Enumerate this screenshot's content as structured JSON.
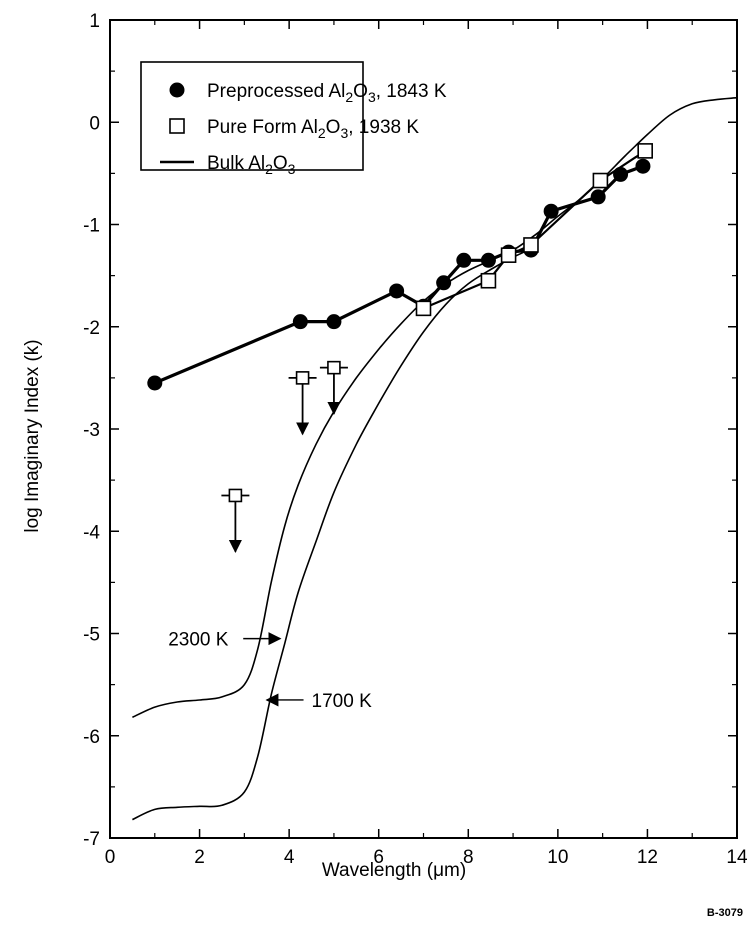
{
  "chart_data": {
    "type": "line",
    "title": "",
    "xlabel": "Wavelength (μm)",
    "ylabel": "log Imaginary Index (k)",
    "xlim": [
      0,
      14
    ],
    "ylim": [
      -7,
      1
    ],
    "xticks": [
      "0",
      "2",
      "4",
      "6",
      "8",
      "10",
      "12",
      "14"
    ],
    "yticks": [
      "1",
      "0",
      "-1",
      "-2",
      "-3",
      "-4",
      "-5",
      "-6",
      "-7"
    ],
    "grid": false,
    "legend_position": "top-left",
    "legend": [
      {
        "label_pre": "Preprocessed Al",
        "sub1": "2",
        "mid": "O",
        "sub2": "3",
        "post": ", 1843 K",
        "marker": "filled-circle"
      },
      {
        "label_pre": "Pure Form Al",
        "sub1": "2",
        "mid": "O",
        "sub2": "3",
        "post": ", 1938 K",
        "marker": "open-square"
      },
      {
        "label_pre": "Bulk Al",
        "sub1": "2",
        "mid": "O",
        "sub2": "3",
        "post": "",
        "marker": "line"
      }
    ],
    "series": [
      {
        "name": "Preprocessed Al2O3, 1843 K",
        "marker": "filled-circle",
        "connected": true,
        "x": [
          1.0,
          4.25,
          5.0,
          6.4,
          7.0,
          7.45,
          7.9,
          8.45,
          8.9,
          9.4,
          9.85,
          10.9,
          11.4,
          11.9
        ],
        "y": [
          -2.55,
          -1.95,
          -1.95,
          -1.65,
          -1.8,
          -1.57,
          -1.35,
          -1.35,
          -1.27,
          -1.25,
          -0.87,
          -0.73,
          -0.51,
          -0.43
        ]
      },
      {
        "name": "Pure Form Al2O3, 1938 K",
        "marker": "open-square",
        "connected": true,
        "x": [
          7.0,
          8.45,
          8.9,
          9.4,
          10.95,
          11.95
        ],
        "y": [
          -1.82,
          -1.55,
          -1.3,
          -1.2,
          -0.57,
          -0.28
        ]
      },
      {
        "name": "Pure Form Al2O3, 1938 K (upper limits)",
        "marker": "open-square-arrow-down",
        "x": [
          2.8,
          4.3,
          5.0
        ],
        "y": [
          -3.65,
          -2.5,
          -2.4
        ],
        "arrow_to": [
          -4.2,
          -3.05,
          -2.85
        ]
      },
      {
        "name": "Bulk Al2O3, 2300 K",
        "marker": "none",
        "x": [
          0.5,
          1.0,
          1.5,
          2.0,
          2.5,
          3.0,
          3.3,
          3.6,
          3.9,
          4.2,
          4.6,
          5.0,
          5.5,
          6.0,
          6.5,
          7.0,
          7.5,
          8.0,
          8.5,
          9.0,
          9.5,
          10.0,
          10.5,
          11.0,
          11.5,
          12.0,
          12.5,
          13.0,
          13.5,
          14.0
        ],
        "y": [
          -5.82,
          -5.72,
          -5.67,
          -5.65,
          -5.62,
          -5.5,
          -5.15,
          -4.5,
          -3.95,
          -3.55,
          -3.15,
          -2.83,
          -2.5,
          -2.22,
          -1.97,
          -1.75,
          -1.58,
          -1.45,
          -1.35,
          -1.25,
          -1.1,
          -0.92,
          -0.75,
          -0.55,
          -0.33,
          -0.12,
          0.07,
          0.18,
          0.22,
          0.24
        ]
      },
      {
        "name": "Bulk Al2O3, 1700 K",
        "marker": "none",
        "x": [
          0.5,
          1.0,
          1.5,
          2.0,
          2.5,
          3.0,
          3.3,
          3.6,
          3.9,
          4.2,
          4.6,
          5.0,
          5.5,
          6.0,
          6.5,
          7.0,
          7.5,
          8.0,
          8.5,
          9.0,
          9.5
        ],
        "y": [
          -6.82,
          -6.72,
          -6.7,
          -6.69,
          -6.68,
          -6.55,
          -6.2,
          -5.6,
          -5.1,
          -4.6,
          -4.1,
          -3.62,
          -3.15,
          -2.75,
          -2.38,
          -2.05,
          -1.78,
          -1.58,
          -1.44,
          -1.32,
          -1.22
        ]
      }
    ],
    "annotations": [
      {
        "text": "2300 K",
        "x": 1.3,
        "y": -5.05,
        "arrow_to_x": 3.8,
        "arrow_to_y": -5.05
      },
      {
        "text": "1700 K",
        "x": 4.5,
        "y": -5.65,
        "arrow_to_x": 3.5,
        "arrow_to_y": -5.65
      }
    ],
    "figure_id": "B-3079"
  }
}
